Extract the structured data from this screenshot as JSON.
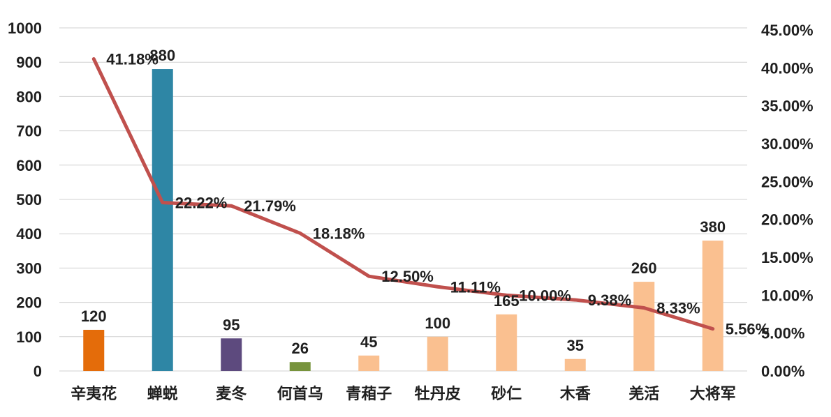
{
  "chart_data": {
    "type": "bar",
    "categories": [
      "辛夷花",
      "蝉蜕",
      "麦冬",
      "何首乌",
      "青葙子",
      "牡丹皮",
      "砂仁",
      "木香",
      "羌活",
      "大将军"
    ],
    "series": [
      {
        "values": [
          120,
          880,
          95,
          26,
          45,
          100,
          165,
          35,
          260,
          380
        ],
        "colors": [
          "#e46c0a",
          "#2e86a5",
          "#5d4a7e",
          "#77933c",
          "#fac090",
          "#fac090",
          "#fac090",
          "#fac090",
          "#fac090",
          "#fac090"
        ],
        "labels": [
          "120",
          "880",
          "95",
          "26",
          "45",
          "100",
          "165",
          "35",
          "260",
          "380"
        ]
      },
      {
        "type": "line",
        "axis": "right",
        "color": "#c0504d",
        "values": [
          41.18,
          22.22,
          21.79,
          18.18,
          12.5,
          11.11,
          10.0,
          9.38,
          8.33,
          5.56
        ],
        "labels": [
          "41.18%",
          "22.22%",
          "21.79%",
          "18.18%",
          "12.50%",
          "11.11%",
          "10.00%",
          "9.38%",
          "8.33%",
          "5.56%"
        ]
      }
    ],
    "ylim": [
      0,
      1000
    ],
    "y_ticks": [
      "0",
      "100",
      "200",
      "300",
      "400",
      "500",
      "600",
      "700",
      "800",
      "900",
      "1000"
    ],
    "y2lim": [
      0,
      45
    ],
    "y2_ticks": [
      "0.00%",
      "5.00%",
      "10.00%",
      "15.00%",
      "20.00%",
      "25.00%",
      "30.00%",
      "35.00%",
      "40.00%",
      "45.00%"
    ],
    "grid": true,
    "legend": "none"
  }
}
